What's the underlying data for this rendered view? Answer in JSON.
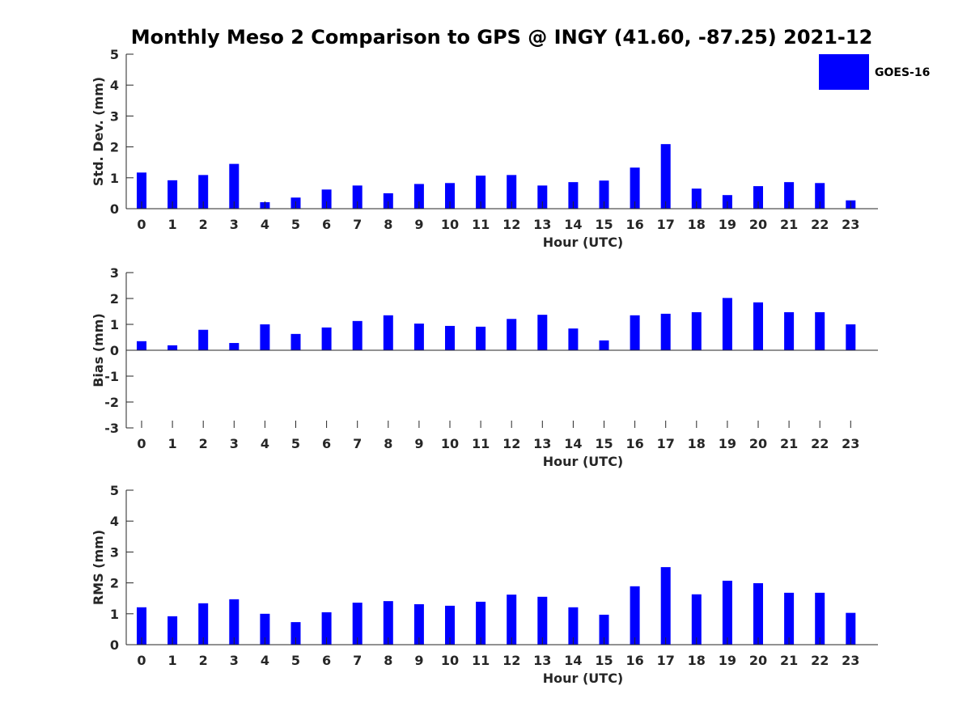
{
  "title": "Monthly Meso 2 Comparison to GPS @ INGY (41.60, -87.25) 2021-12",
  "legend": {
    "label": "GOES-16",
    "color": "#0000ff",
    "placement": "top-right"
  },
  "chart_data": [
    {
      "type": "bar",
      "ylabel": "Std. Dev. (mm)",
      "xlabel": "Hour (UTC)",
      "ylim": [
        0,
        5
      ],
      "yticks": [
        "0",
        "1",
        "2",
        "3",
        "4",
        "5"
      ],
      "categories": [
        "0",
        "1",
        "2",
        "3",
        "4",
        "5",
        "6",
        "7",
        "8",
        "9",
        "10",
        "11",
        "12",
        "13",
        "14",
        "15",
        "16",
        "17",
        "18",
        "19",
        "20",
        "21",
        "22",
        "23"
      ],
      "series": [
        {
          "name": "GOES-16",
          "color": "#0000ff",
          "values": [
            1.17,
            0.92,
            1.09,
            1.45,
            0.21,
            0.36,
            0.62,
            0.75,
            0.5,
            0.8,
            0.83,
            1.07,
            1.09,
            0.75,
            0.86,
            0.91,
            1.33,
            2.09,
            0.65,
            0.44,
            0.73,
            0.86,
            0.83,
            0.27
          ]
        }
      ]
    },
    {
      "type": "bar",
      "ylabel": "Bias (mm)",
      "xlabel": "Hour (UTC)",
      "ylim": [
        -3,
        3
      ],
      "yticks": [
        "-3",
        "-2",
        "-1",
        "0",
        "1",
        "2",
        "3"
      ],
      "categories": [
        "0",
        "1",
        "2",
        "3",
        "4",
        "5",
        "6",
        "7",
        "8",
        "9",
        "10",
        "11",
        "12",
        "13",
        "14",
        "15",
        "16",
        "17",
        "18",
        "19",
        "20",
        "21",
        "22",
        "23"
      ],
      "series": [
        {
          "name": "GOES-16",
          "color": "#0000ff",
          "values": [
            0.35,
            0.19,
            0.79,
            0.28,
            1.0,
            0.63,
            0.88,
            1.13,
            1.35,
            1.03,
            0.94,
            0.91,
            1.21,
            1.37,
            0.84,
            0.38,
            1.35,
            1.41,
            1.47,
            2.02,
            1.85,
            1.47,
            1.47,
            1.0
          ]
        }
      ]
    },
    {
      "type": "bar",
      "ylabel": "RMS (mm)",
      "xlabel": "Hour (UTC)",
      "ylim": [
        0,
        5
      ],
      "yticks": [
        "0",
        "1",
        "2",
        "3",
        "4",
        "5"
      ],
      "categories": [
        "0",
        "1",
        "2",
        "3",
        "4",
        "5",
        "6",
        "7",
        "8",
        "9",
        "10",
        "11",
        "12",
        "13",
        "14",
        "15",
        "16",
        "17",
        "18",
        "19",
        "20",
        "21",
        "22",
        "23"
      ],
      "series": [
        {
          "name": "GOES-16",
          "color": "#0000ff",
          "values": [
            1.21,
            0.92,
            1.34,
            1.47,
            1.0,
            0.73,
            1.05,
            1.36,
            1.41,
            1.31,
            1.26,
            1.39,
            1.62,
            1.55,
            1.21,
            0.97,
            1.89,
            2.51,
            1.63,
            2.07,
            1.99,
            1.68,
            1.68,
            1.03
          ]
        }
      ]
    }
  ]
}
